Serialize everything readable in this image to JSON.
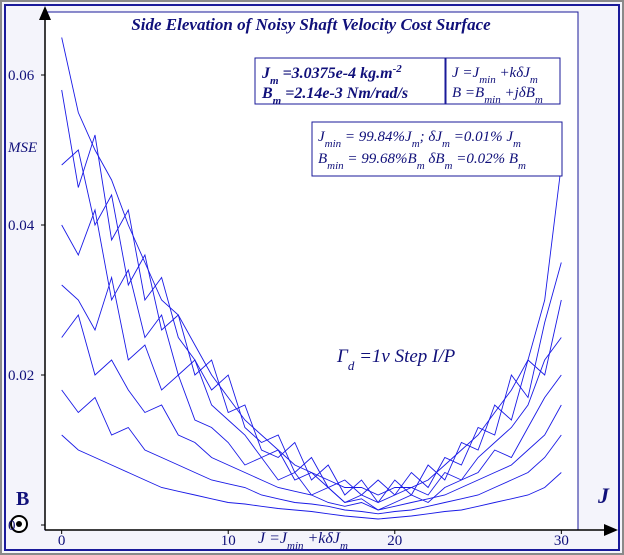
{
  "chart_data": {
    "type": "line",
    "title": "Side Elevation of Noisy Shaft Velocity Cost Surface",
    "y_label": "MSE",
    "x_label": "J",
    "corner_label": "B",
    "x": [
      0,
      1,
      2,
      3,
      4,
      5,
      6,
      7,
      8,
      9,
      10,
      11,
      12,
      13,
      14,
      15,
      16,
      17,
      18,
      19,
      20,
      21,
      22,
      23,
      24,
      25,
      26,
      27,
      28,
      29,
      30
    ],
    "xlim": [
      -1,
      31
    ],
    "xticks": [
      0,
      10,
      20,
      30
    ],
    "ylim": [
      0,
      0.068
    ],
    "yticks": [
      0,
      0.02,
      0.04,
      0.06
    ],
    "color": "#1a1ae6",
    "series": [
      {
        "values": [
          0.065,
          0.055,
          0.05,
          0.046,
          0.04,
          0.035,
          0.03,
          0.028,
          0.024,
          0.02,
          0.017,
          0.014,
          0.012,
          0.01,
          0.008,
          0.007,
          0.006,
          0.005,
          0.005,
          0.004,
          0.005,
          0.005,
          0.006,
          0.008,
          0.01,
          0.012,
          0.015,
          0.018,
          0.022,
          0.03,
          0.048
        ]
      },
      {
        "values": [
          0.058,
          0.045,
          0.052,
          0.038,
          0.042,
          0.03,
          0.033,
          0.025,
          0.022,
          0.018,
          0.02,
          0.013,
          0.011,
          0.012,
          0.007,
          0.009,
          0.005,
          0.006,
          0.004,
          0.006,
          0.004,
          0.007,
          0.005,
          0.009,
          0.008,
          0.013,
          0.012,
          0.02,
          0.017,
          0.027,
          0.035
        ]
      },
      {
        "values": [
          0.048,
          0.05,
          0.04,
          0.044,
          0.032,
          0.036,
          0.026,
          0.028,
          0.02,
          0.022,
          0.015,
          0.016,
          0.01,
          0.009,
          0.011,
          0.006,
          0.008,
          0.004,
          0.006,
          0.003,
          0.006,
          0.004,
          0.008,
          0.006,
          0.011,
          0.01,
          0.016,
          0.014,
          0.022,
          0.02,
          0.03
        ]
      },
      {
        "values": [
          0.04,
          0.036,
          0.042,
          0.03,
          0.034,
          0.025,
          0.028,
          0.02,
          0.022,
          0.016,
          0.014,
          0.012,
          0.009,
          0.01,
          0.006,
          0.007,
          0.005,
          0.003,
          0.004,
          0.003,
          0.004,
          0.005,
          0.004,
          0.007,
          0.006,
          0.009,
          0.011,
          0.013,
          0.016,
          0.022,
          0.025
        ]
      },
      {
        "values": [
          0.032,
          0.03,
          0.026,
          0.033,
          0.022,
          0.024,
          0.018,
          0.02,
          0.014,
          0.013,
          0.011,
          0.008,
          0.009,
          0.006,
          0.007,
          0.004,
          0.005,
          0.003,
          0.0035,
          0.002,
          0.003,
          0.004,
          0.003,
          0.005,
          0.006,
          0.007,
          0.01,
          0.009,
          0.013,
          0.017,
          0.02
        ]
      },
      {
        "values": [
          0.025,
          0.028,
          0.02,
          0.022,
          0.018,
          0.015,
          0.016,
          0.012,
          0.011,
          0.009,
          0.008,
          0.007,
          0.006,
          0.005,
          0.0045,
          0.004,
          0.003,
          0.0025,
          0.003,
          0.002,
          0.0025,
          0.003,
          0.0035,
          0.004,
          0.005,
          0.006,
          0.007,
          0.008,
          0.01,
          0.012,
          0.016
        ]
      },
      {
        "values": [
          0.018,
          0.015,
          0.017,
          0.012,
          0.013,
          0.01,
          0.009,
          0.008,
          0.007,
          0.006,
          0.0055,
          0.005,
          0.004,
          0.0035,
          0.003,
          0.0028,
          0.0025,
          0.002,
          0.0018,
          0.0015,
          0.0018,
          0.002,
          0.0025,
          0.003,
          0.0035,
          0.004,
          0.005,
          0.006,
          0.007,
          0.009,
          0.012
        ]
      },
      {
        "values": [
          0.012,
          0.01,
          0.009,
          0.008,
          0.007,
          0.006,
          0.005,
          0.0045,
          0.004,
          0.0035,
          0.003,
          0.0028,
          0.0025,
          0.0022,
          0.002,
          0.0018,
          0.0015,
          0.0012,
          0.001,
          0.0008,
          0.001,
          0.0012,
          0.0015,
          0.0018,
          0.002,
          0.0025,
          0.003,
          0.0035,
          0.004,
          0.005,
          0.007
        ]
      }
    ],
    "annotations": [
      {
        "bold": true,
        "boxed": true,
        "lines": [
          [
            {
              "text": "J"
            },
            {
              "text": "m",
              "shift": "sub"
            },
            {
              "text": " =3.0375e-4 kg.m"
            },
            {
              "text": "-2",
              "shift": "super"
            }
          ],
          [
            {
              "text": "B"
            },
            {
              "text": "m",
              "shift": "sub"
            },
            {
              "text": " =2.14e-3 Nm/rad/s"
            }
          ]
        ]
      },
      {
        "bold": false,
        "boxed": true,
        "lines": [
          [
            {
              "text": "J =J"
            },
            {
              "text": "min",
              "shift": "sub"
            },
            {
              "text": " +kδJ"
            },
            {
              "text": "m",
              "shift": "sub"
            }
          ],
          [
            {
              "text": "B =B"
            },
            {
              "text": "min",
              "shift": "sub"
            },
            {
              "text": " +jδB"
            },
            {
              "text": "m",
              "shift": "sub"
            }
          ]
        ]
      },
      {
        "bold": false,
        "boxed": true,
        "lines": [
          [
            {
              "text": "J"
            },
            {
              "text": "min",
              "shift": "sub"
            },
            {
              "text": " = 99.84%J"
            },
            {
              "text": "m",
              "shift": "sub"
            },
            {
              "text": "; δJ"
            },
            {
              "text": "m",
              "shift": "sub"
            },
            {
              "text": " =0.01% J"
            },
            {
              "text": "m",
              "shift": "sub"
            }
          ],
          [
            {
              "text": "B"
            },
            {
              "text": "min",
              "shift": "sub"
            },
            {
              "text": " = 99.68%B"
            },
            {
              "text": "m",
              "shift": "sub"
            },
            {
              "text": " δB"
            },
            {
              "text": "m",
              "shift": "sub"
            },
            {
              "text": " =0.02% B"
            },
            {
              "text": "m",
              "shift": "sub"
            }
          ]
        ]
      },
      {
        "bold": false,
        "boxed": false,
        "lines": [
          [
            {
              "text": "Γ"
            },
            {
              "text": "d",
              "shift": "sub"
            },
            {
              "text": " =1v Step I/P"
            }
          ]
        ]
      },
      {
        "bold": false,
        "boxed": false,
        "lines": [
          [
            {
              "text": "J =J"
            },
            {
              "text": "min",
              "shift": "sub"
            },
            {
              "text": " +kδJ"
            },
            {
              "text": "m",
              "shift": "sub"
            }
          ]
        ]
      }
    ]
  }
}
